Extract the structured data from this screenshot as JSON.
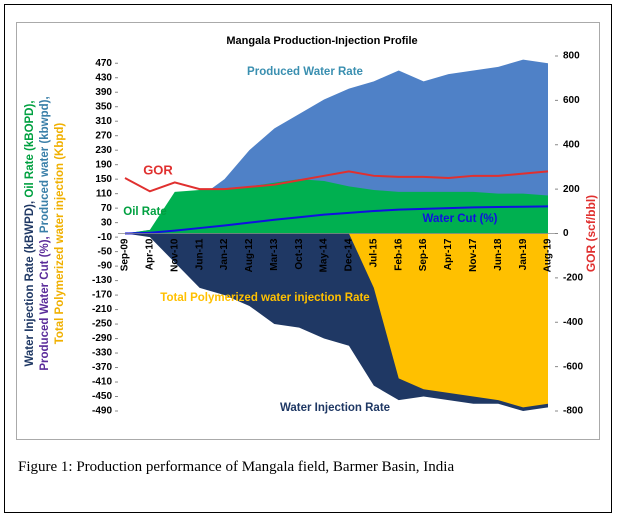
{
  "chart_data": {
    "type": "area-line",
    "title": "Mangala Production-Injection Profile",
    "ylabel": [
      [
        {
          "text": "Water Injection Rate (kBWPD),",
          "color": "#1f3864"
        },
        {
          "text": " Oil Rate (kBOPD),",
          "color": "#00a040"
        }
      ],
      [
        {
          "text": "Produced Water Cut (%),",
          "color": "#5b2c9a"
        },
        {
          "text": " Produced water (kbwpd),",
          "color": "#3a7fa8"
        }
      ],
      [
        {
          "text": "Total Polymerized water injection (Kbpd)",
          "color": "#f0b000"
        }
      ]
    ],
    "y2label": "GOR (scf/bbl)",
    "categories": [
      "Sep-09",
      "Apr-10",
      "Nov-10",
      "Jun-11",
      "Jan-12",
      "Aug-12",
      "Mar-13",
      "Oct-13",
      "May-14",
      "Dec-14",
      "Jul-15",
      "Feb-16",
      "Sep-16",
      "Apr-17",
      "Nov-17",
      "Jun-18",
      "Jan-19",
      "Aug-19"
    ],
    "series": [
      {
        "name": "Produced Water Rate",
        "color": "#4f81c7",
        "style": "area",
        "values": [
          0,
          10,
          40,
          100,
          150,
          230,
          290,
          330,
          370,
          400,
          420,
          450,
          420,
          440,
          450,
          460,
          480,
          470
        ]
      },
      {
        "name": "Water Injection Rate",
        "color": "#1f3864",
        "style": "area",
        "values": [
          0,
          -10,
          -80,
          -150,
          -170,
          -200,
          -250,
          -260,
          -290,
          -310,
          -420,
          -460,
          -450,
          -460,
          -470,
          -470,
          -490,
          -480
        ]
      },
      {
        "name": "Total Polymerized water injection Rate",
        "color": "#ffc000",
        "style": "area",
        "values": [
          null,
          null,
          null,
          null,
          null,
          null,
          null,
          null,
          null,
          0,
          -150,
          -400,
          -430,
          -440,
          -450,
          -460,
          -480,
          -470
        ]
      },
      {
        "name": "Oil Rate",
        "color": "#00b050",
        "style": "area",
        "values": [
          0,
          10,
          115,
          120,
          125,
          130,
          140,
          150,
          145,
          130,
          120,
          115,
          115,
          115,
          115,
          110,
          110,
          105
        ]
      },
      {
        "name": "Water Cut (%)",
        "color": "#1010e0",
        "style": "line",
        "values": [
          0,
          2,
          8,
          15,
          22,
          30,
          38,
          45,
          52,
          57,
          62,
          66,
          68,
          70,
          72,
          73,
          74,
          75
        ]
      },
      {
        "name": "GOR",
        "color": "#e0302f",
        "style": "line",
        "axis": "y2",
        "values": [
          250,
          190,
          230,
          200,
          200,
          210,
          220,
          240,
          260,
          280,
          260,
          255,
          255,
          250,
          260,
          260,
          270,
          280
        ]
      }
    ],
    "ylim": [
      -490,
      490
    ],
    "yticks": [
      -490,
      -450,
      -410,
      -370,
      -330,
      -290,
      -250,
      -210,
      -170,
      -130,
      -90,
      -50,
      -10,
      30,
      70,
      110,
      150,
      190,
      230,
      270,
      310,
      350,
      390,
      430,
      470
    ],
    "y2lim": [
      -800,
      800
    ],
    "y2ticks": [
      -800,
      -600,
      -400,
      -200,
      0,
      200,
      400,
      600,
      800
    ]
  },
  "caption": "Figure 1: Production performance of Mangala field, Barmer Basin, India"
}
